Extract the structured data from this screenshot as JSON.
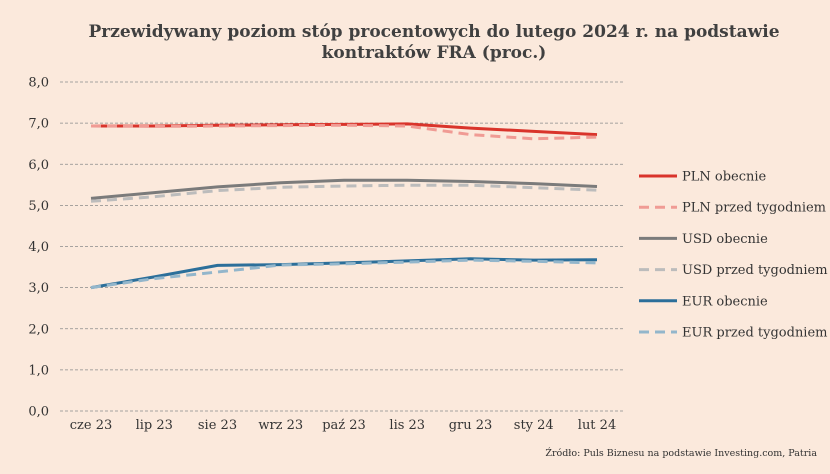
{
  "chart_data": {
    "type": "line",
    "title_lines": [
      "Przewidywany poziom stóp procentowych do lutego 2024 r. na podstawie",
      "kontraktów FRA (proc.)"
    ],
    "categories": [
      "cze 23",
      "lip 23",
      "sie 23",
      "wrz 23",
      "paź 23",
      "lis 23",
      "gru 23",
      "sty 24",
      "lut 24"
    ],
    "y_ticks": [
      "0,0",
      "1,0",
      "2,0",
      "3,0",
      "4,0",
      "5,0",
      "6,0",
      "7,0",
      "8,0"
    ],
    "ylim": [
      0,
      8
    ],
    "grid": "horizontal dashed",
    "legend_position": "right",
    "series": [
      {
        "name": "PLN obecnie",
        "color": "#d9342b",
        "dashed": false,
        "values": [
          6.93,
          6.93,
          6.95,
          6.96,
          6.97,
          6.98,
          6.88,
          6.8,
          6.72
        ]
      },
      {
        "name": "PLN przed tygodniem",
        "color": "#f09b94",
        "dashed": true,
        "values": [
          6.93,
          6.92,
          6.93,
          6.94,
          6.95,
          6.93,
          6.72,
          6.62,
          6.66
        ]
      },
      {
        "name": "USD obecnie",
        "color": "#7b7b7b",
        "dashed": false,
        "values": [
          5.17,
          5.31,
          5.45,
          5.55,
          5.61,
          5.61,
          5.58,
          5.53,
          5.46
        ]
      },
      {
        "name": "USD przed tygodniem",
        "color": "#bcbcbc",
        "dashed": true,
        "values": [
          5.1,
          5.21,
          5.36,
          5.44,
          5.47,
          5.49,
          5.49,
          5.43,
          5.37
        ]
      },
      {
        "name": "EUR obecnie",
        "color": "#2c6f9a",
        "dashed": false,
        "values": [
          3.0,
          3.26,
          3.54,
          3.56,
          3.6,
          3.65,
          3.7,
          3.67,
          3.68
        ]
      },
      {
        "name": "EUR przed tygodniem",
        "color": "#93b6cb",
        "dashed": true,
        "values": [
          3.0,
          3.22,
          3.38,
          3.55,
          3.58,
          3.62,
          3.67,
          3.64,
          3.6
        ]
      }
    ]
  },
  "source": "Źródło: Puls Biznesu na podstawie Investing.com, Patria"
}
